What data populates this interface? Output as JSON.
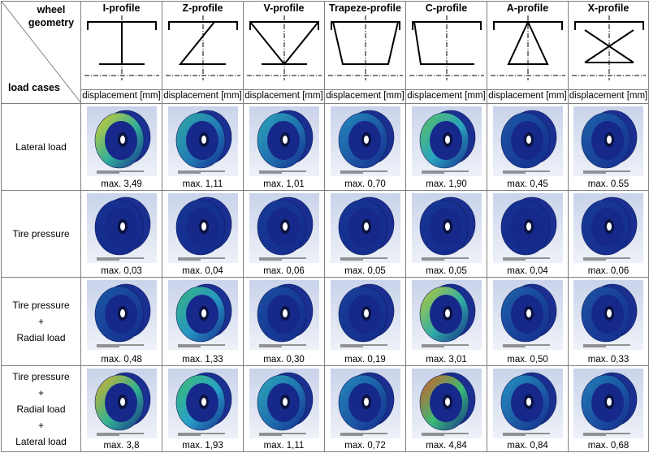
{
  "header": {
    "corner_top": "wheel geometry",
    "corner_bottom": "load cases",
    "displacement_label": "displacement [mm]"
  },
  "profiles": [
    {
      "name": "I-profile"
    },
    {
      "name": "Z-profile"
    },
    {
      "name": "V-profile"
    },
    {
      "name": "Trapeze-profile"
    },
    {
      "name": "C-profile"
    },
    {
      "name": "A-profile"
    },
    {
      "name": "X-profile"
    }
  ],
  "load_cases": [
    {
      "label_lines": [
        "Lateral load"
      ],
      "max": [
        "max. 3,49",
        "max. 1,11",
        "max. 1,01",
        "max. 0,70",
        "max. 1,90",
        "max. 0,45",
        "max. 0.55"
      ],
      "heat": [
        0.75,
        0.35,
        0.3,
        0.2,
        0.55,
        0.1,
        0.12
      ]
    },
    {
      "label_lines": [
        "Tire pressure"
      ],
      "max": [
        "max. 0,03",
        "max. 0,04",
        "max. 0,06",
        "max. 0,05",
        "max. 0,05",
        "max. 0,04",
        "max. 0,06"
      ],
      "heat": [
        0.02,
        0.03,
        0.04,
        0.03,
        0.03,
        0.02,
        0.04
      ]
    },
    {
      "label_lines": [
        "Tire pressure",
        "+",
        "Radial load"
      ],
      "max": [
        "max. 0,48",
        "max. 1,33",
        "max. 0,30",
        "max. 0,19",
        "max. 3,01",
        "max. 0,50",
        "max. 0,33"
      ],
      "heat": [
        0.1,
        0.45,
        0.08,
        0.05,
        0.7,
        0.12,
        0.09
      ]
    },
    {
      "label_lines": [
        "Tire pressure",
        "+",
        "Radial load",
        "+",
        "Lateral load"
      ],
      "max": [
        "max. 3,8",
        "max. 1,93",
        "max. 1,11",
        "max. 0,72",
        "max. 4,84",
        "max. 0,84",
        "max. 0,68"
      ],
      "heat": [
        0.8,
        0.5,
        0.3,
        0.2,
        0.95,
        0.22,
        0.18
      ]
    }
  ]
}
